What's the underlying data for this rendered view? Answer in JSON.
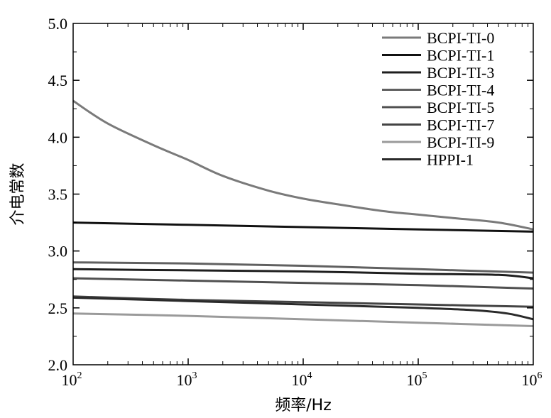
{
  "chart_data": {
    "type": "line",
    "title": "",
    "xlabel": "频率/Hz",
    "ylabel": "介电常数",
    "xscale": "log",
    "xlim": [
      100,
      1000000
    ],
    "ylim": [
      2.0,
      5.0
    ],
    "x_ticks": [
      {
        "base": "10",
        "exp": "2",
        "value": 100
      },
      {
        "base": "10",
        "exp": "3",
        "value": 1000
      },
      {
        "base": "10",
        "exp": "4",
        "value": 10000
      },
      {
        "base": "10",
        "exp": "5",
        "value": 100000
      },
      {
        "base": "10",
        "exp": "6",
        "value": 1000000
      }
    ],
    "y_ticks": [
      "2.0",
      "2.5",
      "3.0",
      "3.5",
      "4.0",
      "4.5",
      "5.0"
    ],
    "grid": false,
    "legend_position": "top-right",
    "series": [
      {
        "name": "BCPI-TI-0",
        "color": "#7a7a7a",
        "x": [
          100,
          200,
          500,
          1000,
          2000,
          5000,
          10000,
          20000,
          50000,
          100000,
          200000,
          500000,
          1000000
        ],
        "y": [
          4.32,
          4.12,
          3.93,
          3.8,
          3.66,
          3.53,
          3.46,
          3.41,
          3.35,
          3.32,
          3.29,
          3.25,
          3.19
        ]
      },
      {
        "name": "BCPI-TI-1",
        "color": "#111111",
        "x": [
          100,
          1000,
          10000,
          100000,
          1000000
        ],
        "y": [
          3.25,
          3.23,
          3.21,
          3.19,
          3.17
        ]
      },
      {
        "name": "BCPI-TI-3",
        "color": "#1e1e1e",
        "x": [
          100,
          1000,
          10000,
          100000,
          500000,
          1000000
        ],
        "y": [
          2.84,
          2.83,
          2.82,
          2.8,
          2.79,
          2.76
        ]
      },
      {
        "name": "BCPI-TI-4",
        "color": "#606060",
        "x": [
          100,
          1000,
          10000,
          100000,
          1000000
        ],
        "y": [
          2.9,
          2.89,
          2.87,
          2.84,
          2.81
        ]
      },
      {
        "name": "BCPI-TI-5",
        "color": "#505050",
        "x": [
          100,
          1000,
          10000,
          100000,
          1000000
        ],
        "y": [
          2.76,
          2.74,
          2.72,
          2.7,
          2.67
        ]
      },
      {
        "name": "BCPI-TI-7",
        "color": "#444444",
        "x": [
          100,
          1000,
          10000,
          100000,
          1000000
        ],
        "y": [
          2.6,
          2.57,
          2.55,
          2.53,
          2.51
        ]
      },
      {
        "name": "BCPI-TI-9",
        "color": "#9a9a9a",
        "x": [
          100,
          1000,
          10000,
          100000,
          1000000
        ],
        "y": [
          2.45,
          2.43,
          2.4,
          2.37,
          2.34
        ]
      },
      {
        "name": "HPPI-1",
        "color": "#2a2a2a",
        "x": [
          100,
          1000,
          10000,
          100000,
          300000,
          600000,
          1000000
        ],
        "y": [
          2.59,
          2.56,
          2.53,
          2.5,
          2.48,
          2.45,
          2.4
        ]
      }
    ]
  }
}
